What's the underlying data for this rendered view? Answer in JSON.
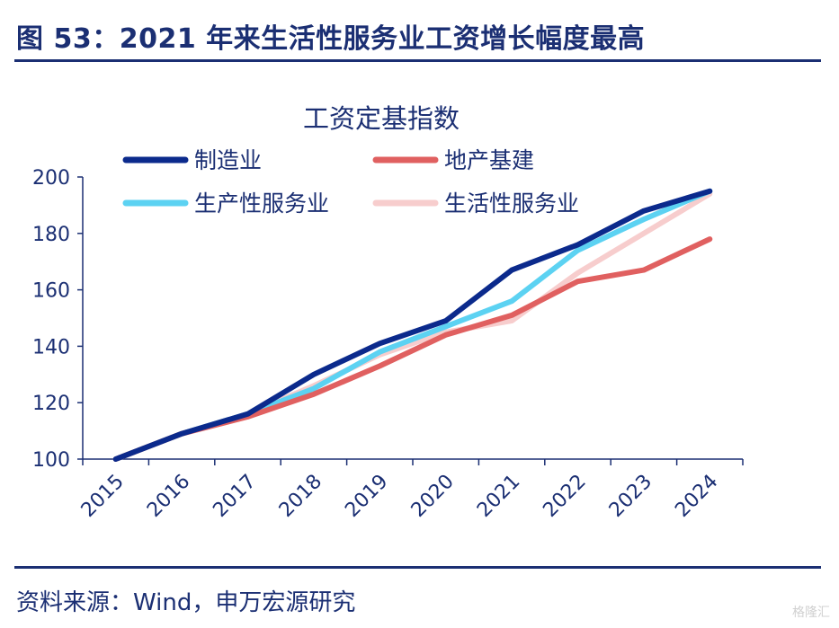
{
  "figure_title": "图 53：2021 年来生活性服务业工资增长幅度最高",
  "source": "资料来源：Wind，申万宏源研究",
  "watermark": "格隆汇",
  "chart_data": {
    "type": "line",
    "title": "工资定基指数",
    "categories": [
      "2015",
      "2016",
      "2017",
      "2018",
      "2019",
      "2020",
      "2021",
      "2022",
      "2023",
      "2024"
    ],
    "ylim": [
      100,
      200
    ],
    "yticks": [
      100,
      120,
      140,
      160,
      180,
      200
    ],
    "grid": false,
    "legend_position": "top",
    "series": [
      {
        "name": "制造业",
        "color": "#0b2a8c",
        "values": [
          100,
          109,
          116,
          130,
          141,
          149,
          167,
          176,
          188,
          195
        ]
      },
      {
        "name": "地产基建",
        "color": "#e06060",
        "values": [
          100,
          109,
          115,
          123,
          133,
          144,
          151,
          163,
          167,
          178
        ]
      },
      {
        "name": "生产性服务业",
        "color": "#5cd2f2",
        "values": [
          100,
          109,
          116,
          125,
          138,
          147,
          156,
          174,
          185,
          195
        ]
      },
      {
        "name": "生活性服务业",
        "color": "#f7cdcd",
        "values": [
          100,
          109,
          116,
          126,
          137,
          145,
          149,
          166,
          180,
          194
        ]
      }
    ]
  }
}
